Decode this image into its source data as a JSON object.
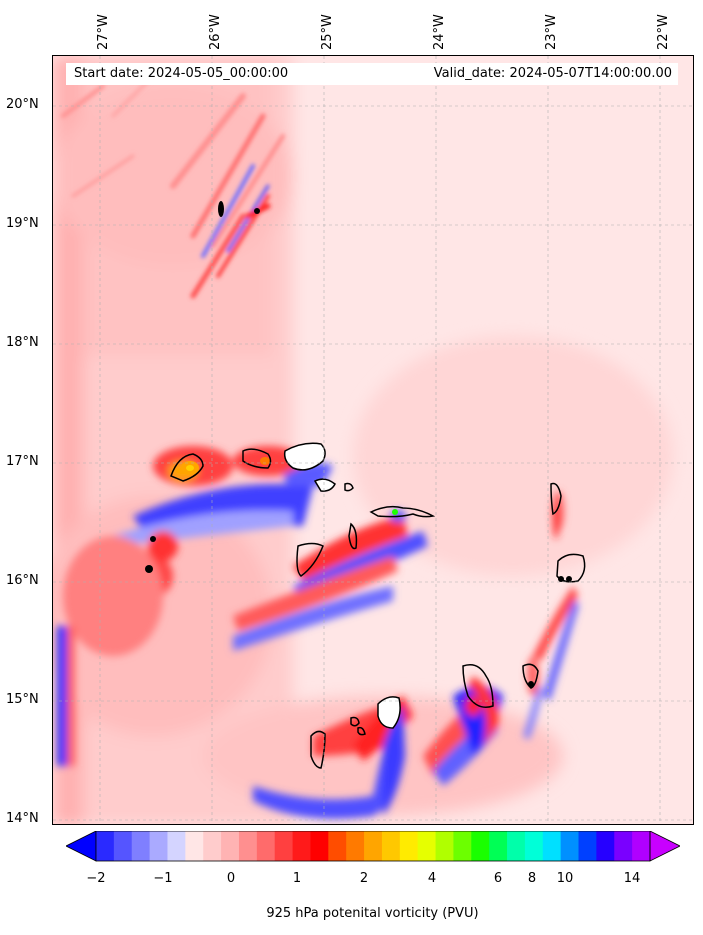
{
  "header": {
    "start_date": "Start date: 2024-05-05_00:00:00",
    "valid_date": "Valid_date: 2024-05-07T14:00:00.00"
  },
  "longitude_labels": [
    "27°W",
    "26°W",
    "25°W",
    "24°W",
    "23°W",
    "22°W"
  ],
  "latitude_labels": [
    "20°N",
    "19°N",
    "18°N",
    "17°N",
    "16°N",
    "15°N",
    "14°N"
  ],
  "colorbar": {
    "label": "925 hPa potenital vorticity (PVU)",
    "tick_labels": [
      "−2",
      "−1",
      "0",
      "1",
      "2",
      "4",
      "6",
      "8",
      "10",
      "14"
    ],
    "colors": [
      "#0000ff",
      "#2a2aff",
      "#5555ff",
      "#7f7fff",
      "#aaaaff",
      "#d4d4ff",
      "#ffe6e6",
      "#ffcccc",
      "#ffb3b3",
      "#ff8f8f",
      "#ff6b6b",
      "#ff4040",
      "#ff1a1a",
      "#ff0000",
      "#ff4d00",
      "#ff7a00",
      "#ffa500",
      "#ffc800",
      "#ffeb00",
      "#e6ff00",
      "#b0ff00",
      "#6cff00",
      "#1aff00",
      "#00ff55",
      "#00ffaa",
      "#00ffd8",
      "#00e0ff",
      "#0090ff",
      "#0040ff",
      "#2600ff",
      "#7a00ff",
      "#b000ff",
      "#c800ff"
    ]
  },
  "map": {
    "ocean_color": "#ffe8e8",
    "coastline_color": "#000000"
  }
}
